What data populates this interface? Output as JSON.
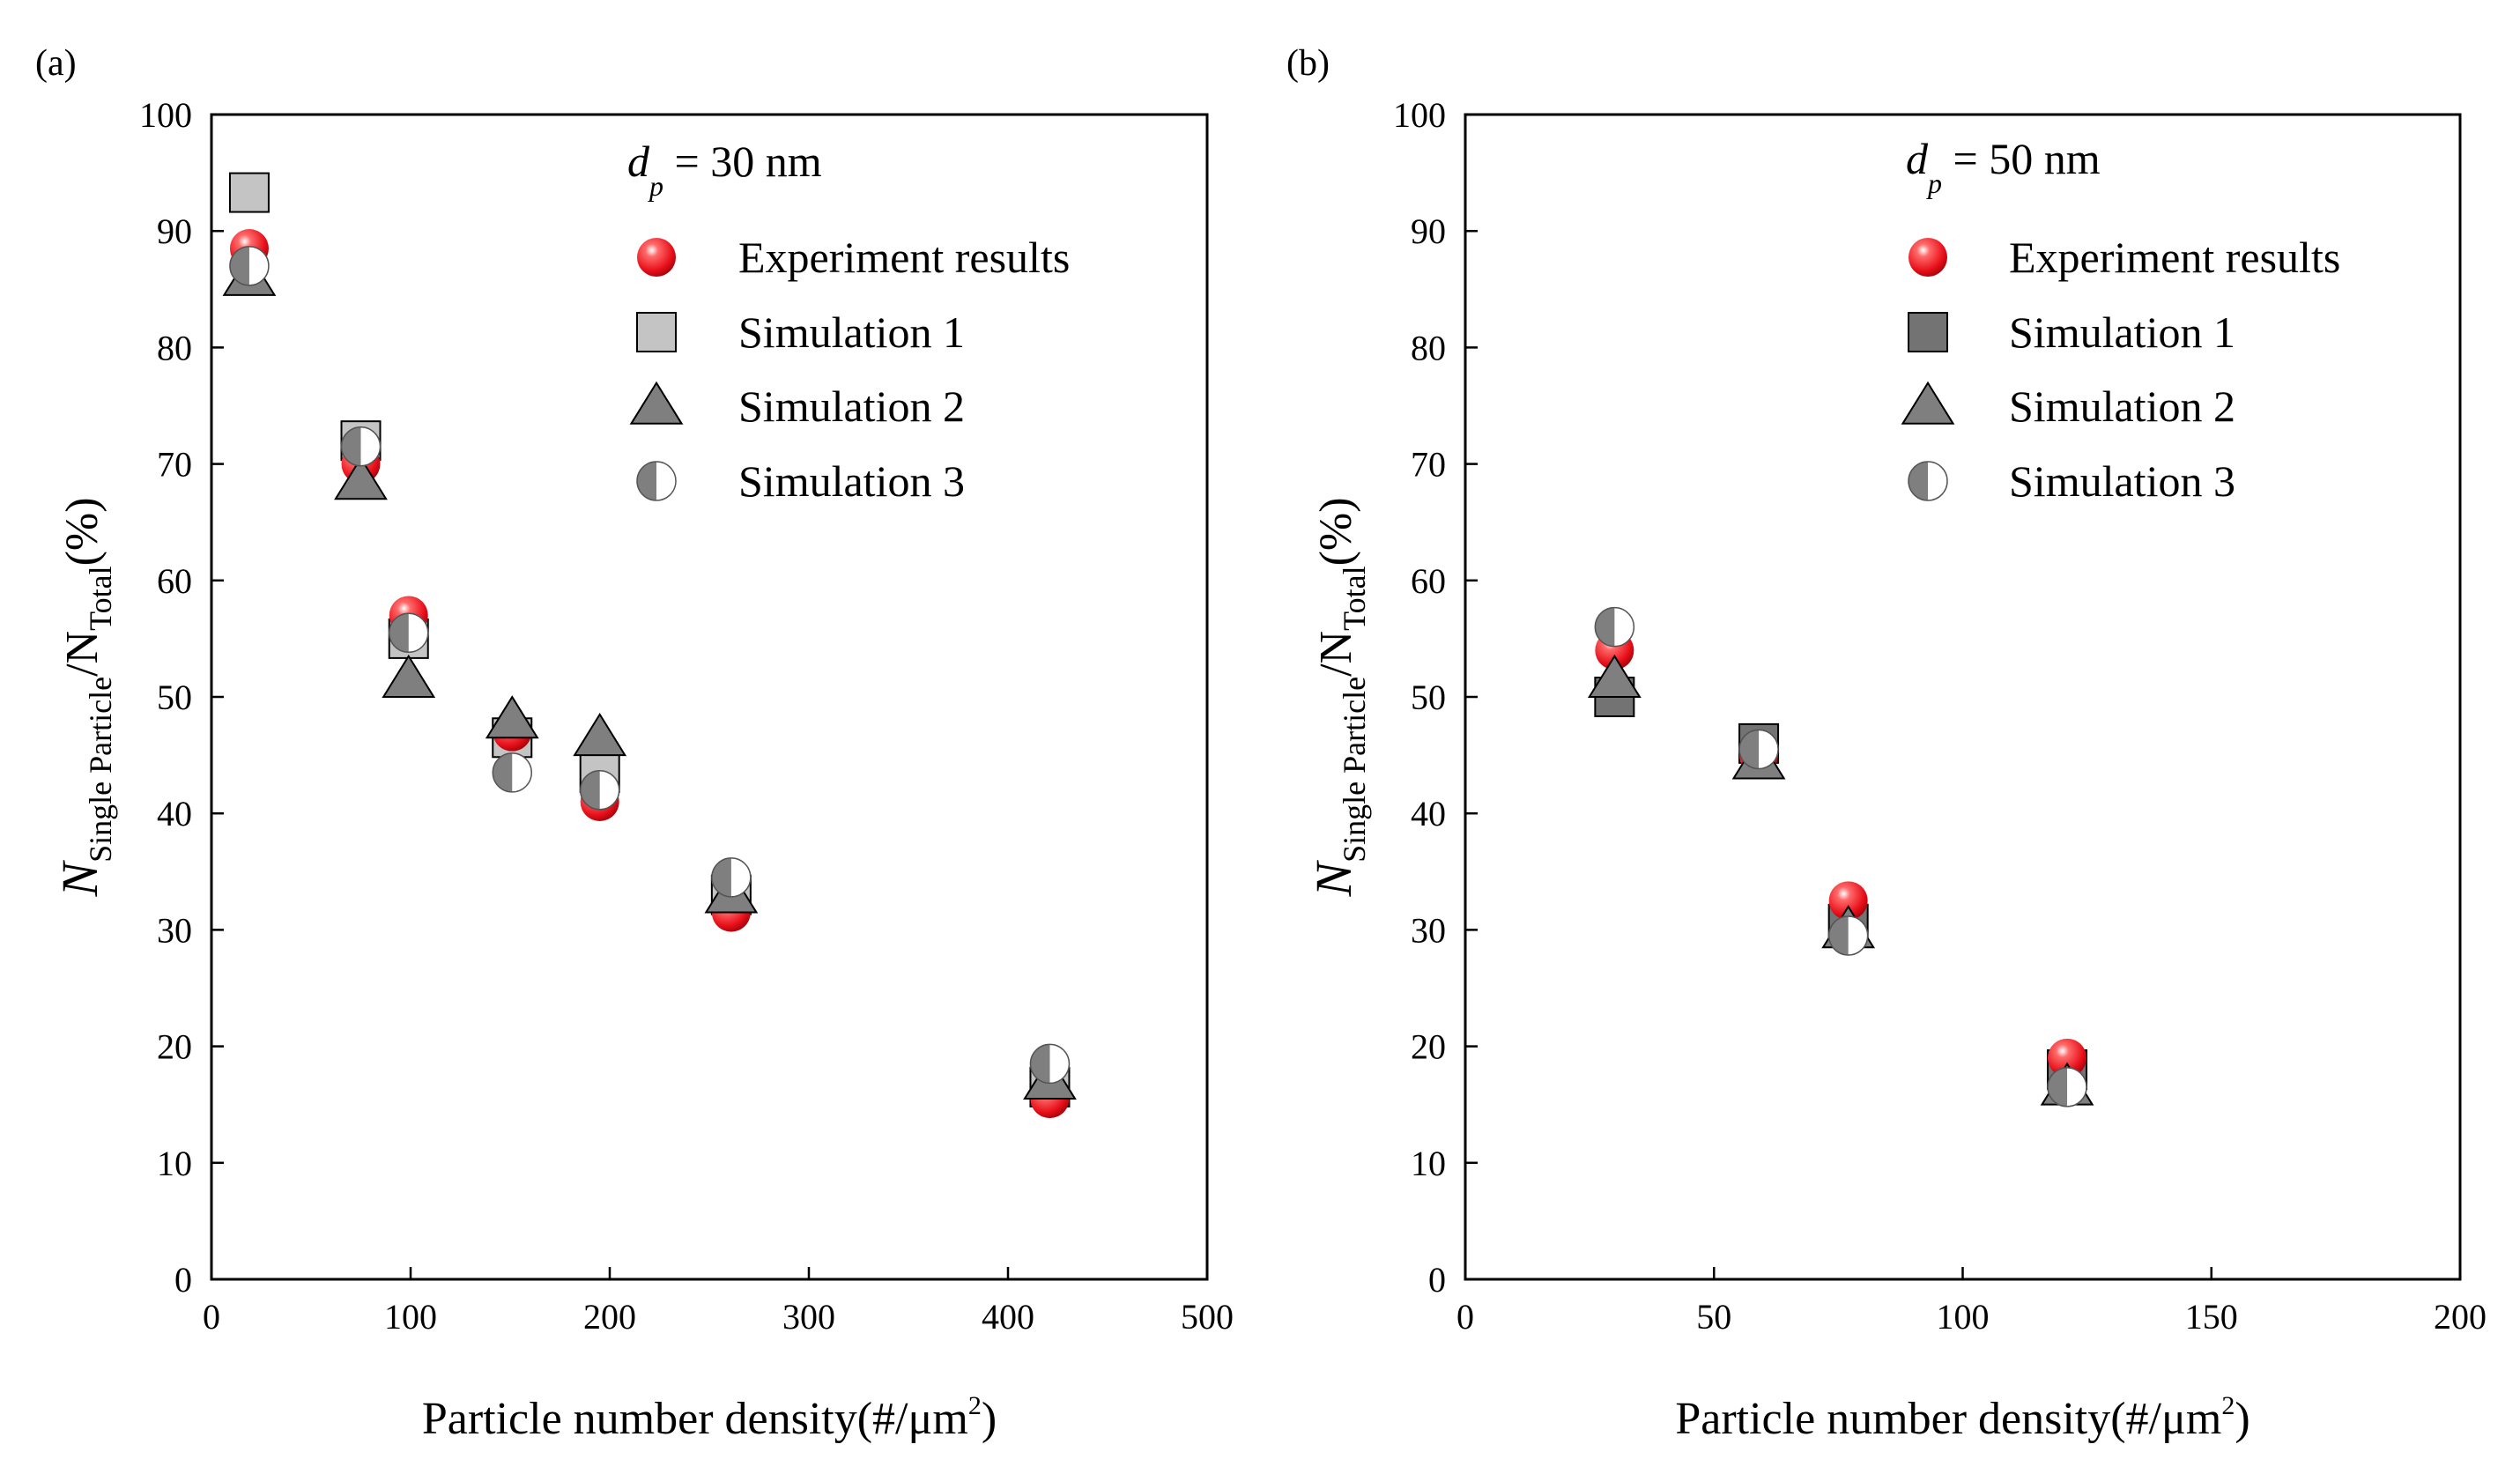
{
  "figure": {
    "panel_labels": [
      "(a)",
      "(b)"
    ]
  },
  "legend_entries": [
    "Experiment results",
    "Simulation 1",
    "Simulation 2",
    "Simulation 3"
  ],
  "colors": {
    "experiment": "#e8101a",
    "sim1_panel_a": "#c4c4c4",
    "sim1_panel_b": "#737373",
    "sim2": "#7f7f7f",
    "sim3_dark": "#7f7f7f",
    "sim3_light": "#ffffff",
    "axis": "#000000"
  },
  "chart_data": [
    {
      "type": "scatter",
      "panel": "(a)",
      "annotation": {
        "symbol": "d",
        "subscript": "p",
        "text": " = 30 nm"
      },
      "xlabel": {
        "text": "Particle number density(#/μm",
        "sup": "2",
        "close": ")"
      },
      "ylabel": {
        "main": "N",
        "sub": "Single Particle",
        "mid": "/N",
        "sub2": "Total",
        "tail": "(%)"
      },
      "xlim": [
        0,
        500
      ],
      "ylim": [
        0,
        100
      ],
      "xticks": [
        0,
        100,
        200,
        300,
        400,
        500
      ],
      "yticks": [
        0,
        10,
        20,
        30,
        40,
        50,
        60,
        70,
        80,
        90,
        100
      ],
      "legend_position": "top-right",
      "series": [
        {
          "name": "Experiment results",
          "marker": "sphere",
          "points": [
            [
              19,
              88.5
            ],
            [
              75,
              70
            ],
            [
              99,
              57
            ],
            [
              151,
              47
            ],
            [
              195,
              41
            ],
            [
              261,
              31.5
            ],
            [
              421,
              15.5
            ]
          ]
        },
        {
          "name": "Simulation 1",
          "marker": "square",
          "points": [
            [
              19,
              93.3
            ],
            [
              75,
              72
            ],
            [
              99,
              55
            ],
            [
              151,
              46.5
            ],
            [
              195,
              43.5
            ],
            [
              261,
              33
            ],
            [
              421,
              16.5
            ]
          ]
        },
        {
          "name": "Simulation 2",
          "marker": "triangle",
          "points": [
            [
              19,
              86
            ],
            [
              75,
              68.5
            ],
            [
              99,
              51.5
            ],
            [
              151,
              48
            ],
            [
              195,
              46.5
            ],
            [
              261,
              33
            ],
            [
              421,
              17
            ]
          ]
        },
        {
          "name": "Simulation 3",
          "marker": "half-circle",
          "points": [
            [
              19,
              87
            ],
            [
              75,
              71.5
            ],
            [
              99,
              55.5
            ],
            [
              151,
              43.5
            ],
            [
              195,
              42
            ],
            [
              261,
              34.5
            ],
            [
              421,
              18.5
            ]
          ]
        }
      ]
    },
    {
      "type": "scatter",
      "panel": "(b)",
      "annotation": {
        "symbol": "d",
        "subscript": "p",
        "text": " = 50 nm"
      },
      "xlabel": {
        "text": "Particle number density(#/μm",
        "sup": "2",
        "close": ")"
      },
      "ylabel": {
        "main": "N",
        "sub": "Single Particle",
        "mid": "/N",
        "sub2": "Total",
        "tail": "(%)"
      },
      "xlim": [
        0,
        200
      ],
      "ylim": [
        0,
        100
      ],
      "xticks": [
        0,
        50,
        100,
        150,
        200
      ],
      "yticks": [
        0,
        10,
        20,
        30,
        40,
        50,
        60,
        70,
        80,
        90,
        100
      ],
      "legend_position": "top-right",
      "series": [
        {
          "name": "Experiment results",
          "marker": "sphere",
          "points": [
            [
              30,
              54
            ],
            [
              59,
              45
            ],
            [
              77,
              32.5
            ],
            [
              121,
              19
            ]
          ]
        },
        {
          "name": "Simulation 1",
          "marker": "square",
          "points": [
            [
              30,
              50
            ],
            [
              59,
              46
            ],
            [
              77,
              30.5
            ],
            [
              121,
              18
            ]
          ]
        },
        {
          "name": "Simulation 2",
          "marker": "triangle",
          "points": [
            [
              30,
              51.5
            ],
            [
              59,
              44.5
            ],
            [
              77,
              30
            ],
            [
              121,
              16.5
            ]
          ]
        },
        {
          "name": "Simulation 3",
          "marker": "half-circle",
          "points": [
            [
              30,
              56
            ],
            [
              59,
              45.5
            ],
            [
              77,
              29.5
            ],
            [
              121,
              16.5
            ]
          ]
        }
      ]
    }
  ]
}
